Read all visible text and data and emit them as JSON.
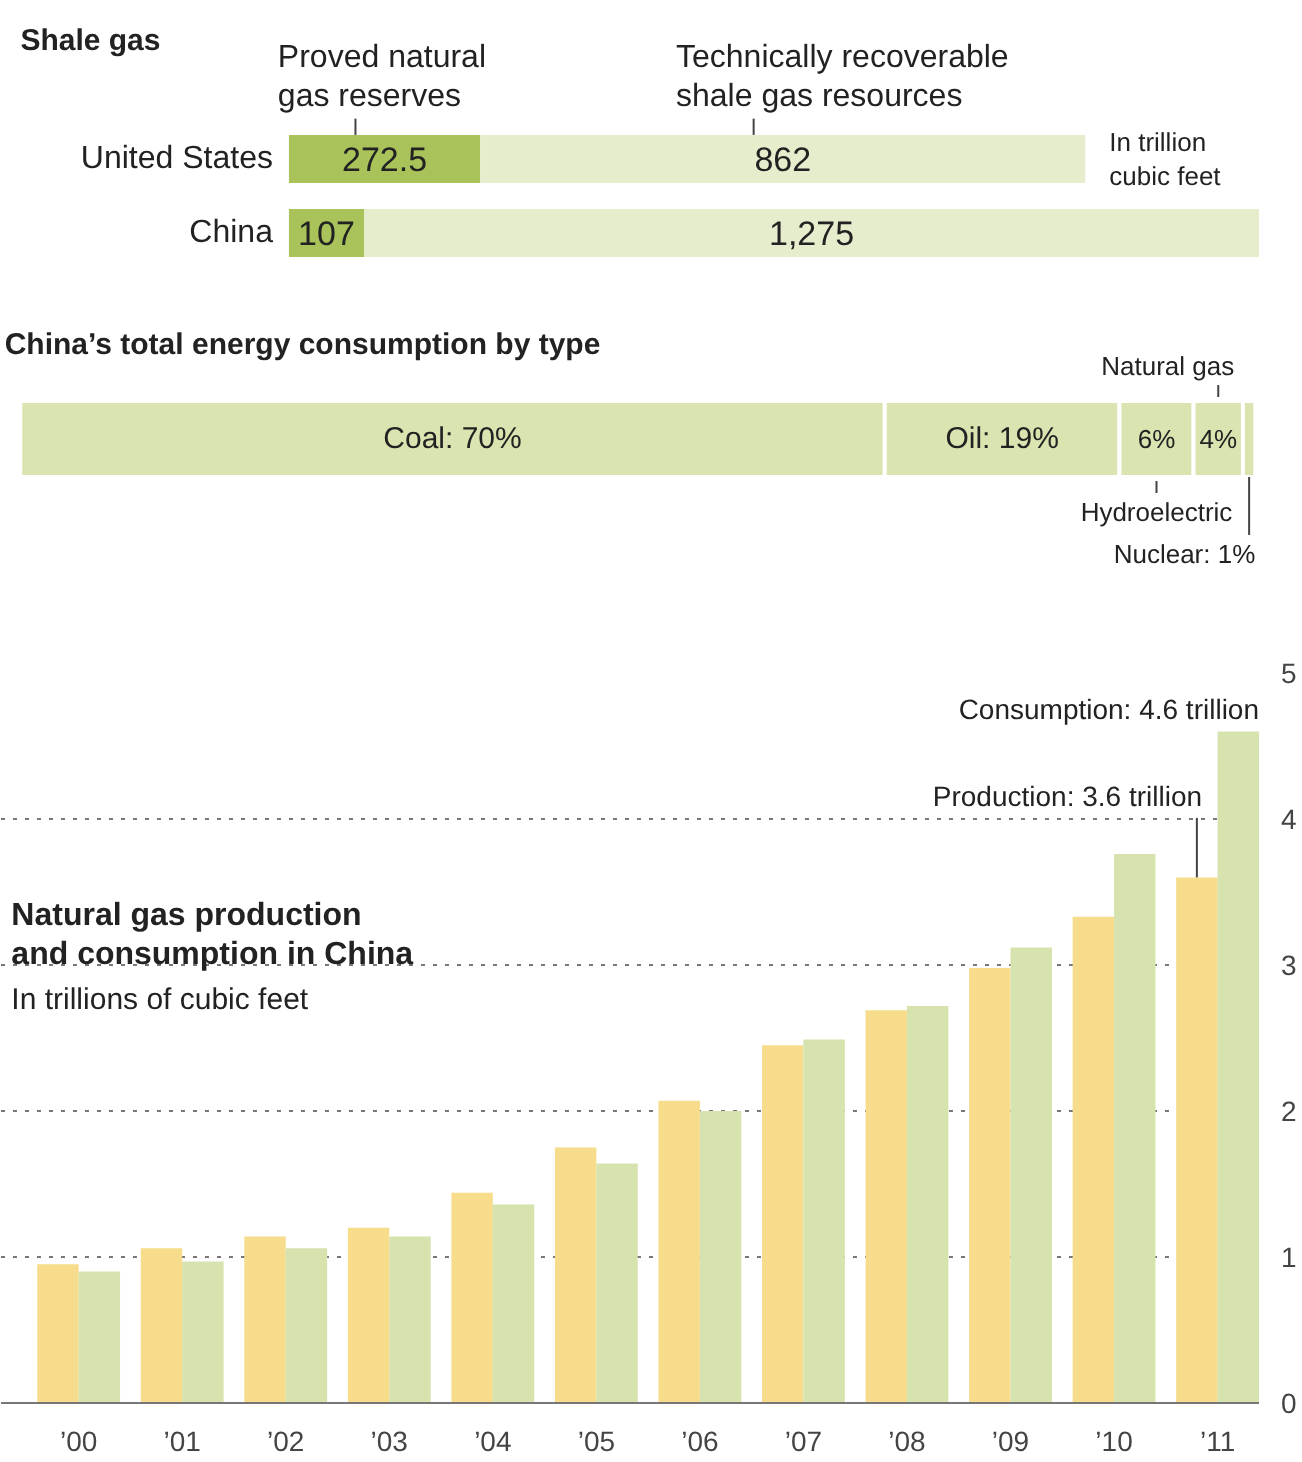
{
  "chart_data": [
    {
      "type": "bar",
      "orientation": "horizontal",
      "stacked": true,
      "title": "Shale gas",
      "categories": [
        "United States",
        "China"
      ],
      "tick_labels": "y",
      "annotations": [
        "In trillion cubic feet"
      ],
      "series": [
        {
          "name": "Proved natural gas reserves",
          "color": "#a9c35a",
          "values": [
            272.5,
            107
          ],
          "value_labels": [
            "272.5",
            "107"
          ]
        },
        {
          "name": "Technically recoverable shale gas resources",
          "color": "#e6edcc",
          "values": [
            862,
            1275
          ],
          "value_labels": [
            "862",
            "1,275"
          ]
        }
      ]
    },
    {
      "type": "bar",
      "orientation": "horizontal",
      "stacked": true,
      "title": "China’s total energy consumption by type",
      "categories": [
        null
      ],
      "tick_labels": false,
      "series": [
        {
          "color": "#d9e4b0",
          "values": [
            70
          ],
          "value_labels": [
            "Coal: 70%"
          ]
        },
        {
          "color": "#d9e4b0",
          "values": [
            19
          ],
          "value_labels": [
            "Oil: 19%"
          ]
        },
        {
          "name": "Hydroelectric",
          "color": "#d9e4b0",
          "values": [
            6
          ],
          "value_labels": [
            "6%"
          ]
        },
        {
          "name": "Natural gas",
          "color": "#d9e4b0",
          "values": [
            4
          ],
          "value_labels": [
            "4%"
          ]
        },
        {
          "color": "#d9e4b0",
          "values": [
            1
          ],
          "value_labels": [
            "Nuclear: 1%"
          ]
        }
      ]
    },
    {
      "type": "bar",
      "title": "Natural gas production and consumption in China",
      "subtitle": "In trillions of cubic feet",
      "categories": [
        "’00",
        "’01",
        "’02",
        "’03",
        "’04",
        "’05",
        "’06",
        "’07",
        "’08",
        "’09",
        "’10",
        "’11"
      ],
      "ylim": [
        0,
        5
      ],
      "yticks": [
        0,
        1,
        2,
        3,
        4,
        5
      ],
      "grid": "y",
      "series": [
        {
          "color": "#f6dc8b",
          "values": [
            0.95,
            1.06,
            1.14,
            1.2,
            1.44,
            1.75,
            2.07,
            2.45,
            2.69,
            2.98,
            3.33,
            3.6
          ]
        },
        {
          "color": "#d7e3ae",
          "values": [
            0.9,
            0.97,
            1.06,
            1.14,
            1.36,
            1.64,
            2.0,
            2.49,
            2.72,
            3.12,
            3.76,
            4.6
          ]
        }
      ],
      "annotations": [
        {
          "text": "Consumption: 4.6 trillion",
          "x": "’11",
          "y": 4.6
        },
        {
          "text": "Production: 3.6 trillion",
          "x": "’11",
          "y": 3.6
        }
      ]
    }
  ]
}
